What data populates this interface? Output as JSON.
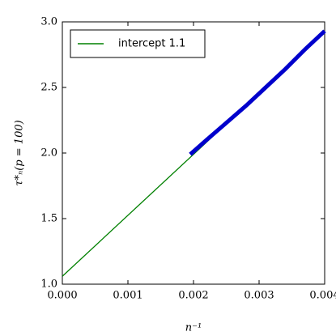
{
  "chart_data": {
    "type": "line",
    "xlabel": "n⁻¹",
    "ylabel": "τ*ₙ(p = 100)",
    "series": [
      {
        "name": "intercept 1.1",
        "color": "#008000",
        "x": [
          0,
          0.004
        ],
        "values": [
          1.06,
          2.92
        ]
      },
      {
        "color": "#0000cc",
        "x": [
          0.00195,
          0.0022,
          0.0025,
          0.0028,
          0.0031,
          0.0034,
          0.0037,
          0.004
        ],
        "values": [
          1.99,
          2.1,
          2.23,
          2.36,
          2.5,
          2.64,
          2.79,
          2.93
        ]
      }
    ],
    "xlim": [
      0,
      0.004
    ],
    "xticks": [
      {
        "value": 0,
        "label": "0.000"
      },
      {
        "value": 0.001,
        "label": "0.001"
      },
      {
        "value": 0.002,
        "label": "0.002"
      },
      {
        "value": 0.003,
        "label": "0.003"
      },
      {
        "value": 0.004,
        "label": "0.004"
      }
    ],
    "ylim": [
      1,
      3
    ],
    "yticks": [
      {
        "value": 1,
        "label": "1.0"
      },
      1.5,
      {
        "value": 2,
        "label": "2.0"
      },
      2.5,
      {
        "value": 3,
        "label": "3.0"
      }
    ],
    "legend": "upper-left"
  }
}
